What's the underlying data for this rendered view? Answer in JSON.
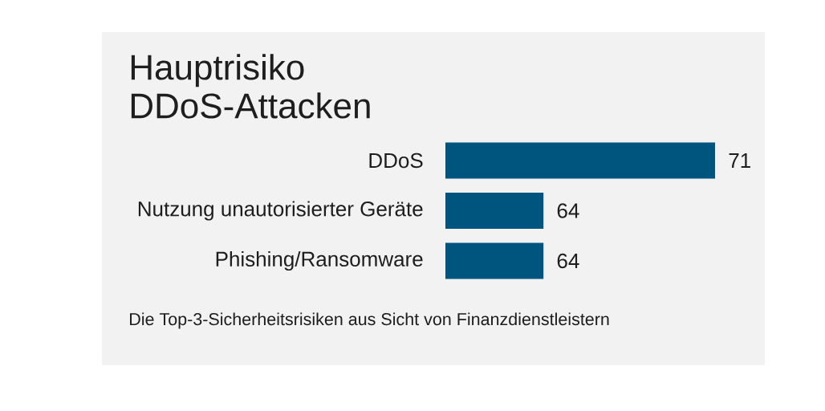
{
  "chart_data": {
    "type": "bar",
    "orientation": "horizontal",
    "title": "Hauptrisiko DDoS-Attacken",
    "categories": [
      "DDoS",
      "Nutzung unautorisierter Geräte",
      "Phishing/Ransomware"
    ],
    "values": [
      71,
      64,
      64
    ],
    "color": "#00557f",
    "xlim": [
      60,
      71
    ],
    "data_labels": true,
    "tick_labels": "y",
    "annotations": [
      "Die Top-3-Sicherheitsrisiken aus Sicht von Finanzdienstleistern"
    ]
  }
}
